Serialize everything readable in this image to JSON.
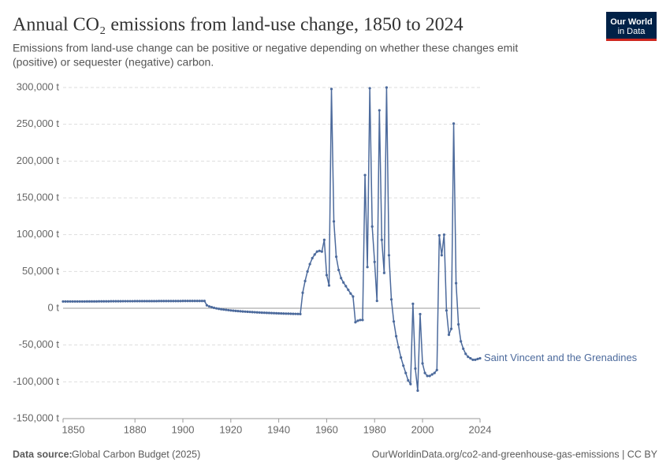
{
  "chart_data": {
    "type": "line",
    "title": "Annual CO₂ emissions from land-use change, 1850 to 2024",
    "subtitle": [
      "Emissions from land-use change can be positive or negative depending on whether these changes emit",
      "(positive) or sequester (negative) carbon."
    ],
    "logo": [
      "Our World",
      "in Data"
    ],
    "source_label": "Data source:",
    "source": "Global Carbon Budget (2025)",
    "footer_url": "OurWorldinData.org/co2-and-greenhouse-gas-emissions | CC BY",
    "grid": true,
    "xlim": [
      1850,
      2024
    ],
    "ylim": [
      -150000,
      300000
    ],
    "xticks": [
      1850,
      1880,
      1900,
      1920,
      1940,
      1960,
      1980,
      2000,
      2024
    ],
    "yticks": [
      {
        "value": -150000,
        "label": "-150,000 t"
      },
      {
        "value": -100000,
        "label": "-100,000 t"
      },
      {
        "value": -50000,
        "label": "-50,000 t"
      },
      {
        "value": 0,
        "label": "0 t"
      },
      {
        "value": 50000,
        "label": "50,000 t"
      },
      {
        "value": 100000,
        "label": "100,000 t"
      },
      {
        "value": 150000,
        "label": "150,000 t"
      },
      {
        "value": 200000,
        "label": "200,000 t"
      },
      {
        "value": 250000,
        "label": "250,000 t"
      },
      {
        "value": 300000,
        "label": "300,000 t"
      }
    ],
    "x": [
      1850,
      1851,
      1852,
      1853,
      1854,
      1855,
      1856,
      1857,
      1858,
      1859,
      1860,
      1861,
      1862,
      1863,
      1864,
      1865,
      1866,
      1867,
      1868,
      1869,
      1870,
      1871,
      1872,
      1873,
      1874,
      1875,
      1876,
      1877,
      1878,
      1879,
      1880,
      1881,
      1882,
      1883,
      1884,
      1885,
      1886,
      1887,
      1888,
      1889,
      1890,
      1891,
      1892,
      1893,
      1894,
      1895,
      1896,
      1897,
      1898,
      1899,
      1900,
      1901,
      1902,
      1903,
      1904,
      1905,
      1906,
      1907,
      1908,
      1909,
      1910,
      1911,
      1912,
      1913,
      1914,
      1915,
      1916,
      1917,
      1918,
      1919,
      1920,
      1921,
      1922,
      1923,
      1924,
      1925,
      1926,
      1927,
      1928,
      1929,
      1930,
      1931,
      1932,
      1933,
      1934,
      1935,
      1936,
      1937,
      1938,
      1939,
      1940,
      1941,
      1942,
      1943,
      1944,
      1945,
      1946,
      1947,
      1948,
      1949,
      1950,
      1951,
      1952,
      1953,
      1954,
      1955,
      1956,
      1957,
      1958,
      1959,
      1960,
      1961,
      1962,
      1963,
      1964,
      1965,
      1966,
      1967,
      1968,
      1969,
      1970,
      1971,
      1972,
      1973,
      1974,
      1975,
      1976,
      1977,
      1978,
      1979,
      1980,
      1981,
      1982,
      1983,
      1984,
      1985,
      1986,
      1987,
      1988,
      1989,
      1990,
      1991,
      1992,
      1993,
      1994,
      1995,
      1996,
      1997,
      1998,
      1999,
      2000,
      2001,
      2002,
      2003,
      2004,
      2005,
      2006,
      2007,
      2008,
      2009,
      2010,
      2011,
      2012,
      2013,
      2014,
      2015,
      2016,
      2017,
      2018,
      2019,
      2020,
      2021,
      2022,
      2023,
      2024
    ],
    "series": [
      {
        "name": "Saint Vincent and the Grenadines",
        "color": "#4c6a9c",
        "values": [
          9200,
          9200,
          9200,
          9200,
          9200,
          9200,
          9200,
          9200,
          9200,
          9200,
          9300,
          9300,
          9300,
          9300,
          9300,
          9400,
          9400,
          9400,
          9400,
          9400,
          9500,
          9500,
          9500,
          9500,
          9500,
          9600,
          9600,
          9600,
          9600,
          9600,
          9700,
          9700,
          9700,
          9700,
          9700,
          9700,
          9700,
          9700,
          9700,
          9700,
          9800,
          9800,
          9800,
          9800,
          9800,
          9800,
          9800,
          9800,
          9800,
          9800,
          9900,
          9900,
          9900,
          9900,
          9900,
          9900,
          9900,
          9900,
          9900,
          9900,
          4000,
          2500,
          1500,
          500,
          -200,
          -800,
          -1300,
          -1800,
          -2200,
          -2600,
          -3000,
          -3300,
          -3600,
          -3900,
          -4100,
          -4400,
          -4600,
          -4800,
          -5000,
          -5200,
          -5400,
          -5600,
          -5800,
          -6000,
          -6100,
          -6300,
          -6400,
          -6600,
          -6700,
          -6800,
          -7000,
          -7100,
          -7200,
          -7300,
          -7400,
          -7500,
          -7600,
          -7700,
          -7800,
          -7900,
          21000,
          37000,
          50000,
          60000,
          68000,
          73000,
          77000,
          78000,
          77000,
          93000,
          45000,
          31000,
          298000,
          118000,
          70000,
          52000,
          41000,
          35000,
          30000,
          25000,
          20000,
          16000,
          -19000,
          -17000,
          -16000,
          -16000,
          181000,
          56000,
          299000,
          111000,
          63000,
          10000,
          269000,
          93000,
          48000,
          300000,
          72000,
          12000,
          -18000,
          -38000,
          -53000,
          -67000,
          -78000,
          -88000,
          -98000,
          -103000,
          6000,
          -82000,
          -112000,
          -8000,
          -75000,
          -88000,
          -92000,
          -92000,
          -90000,
          -88000,
          -84000,
          99000,
          72000,
          100000,
          -3000,
          -36000,
          -28000,
          251000,
          34000,
          -22000,
          -45000,
          -55000,
          -62000,
          -66000,
          -68000,
          -70000,
          -70000,
          -69000,
          -68000
        ]
      }
    ]
  }
}
